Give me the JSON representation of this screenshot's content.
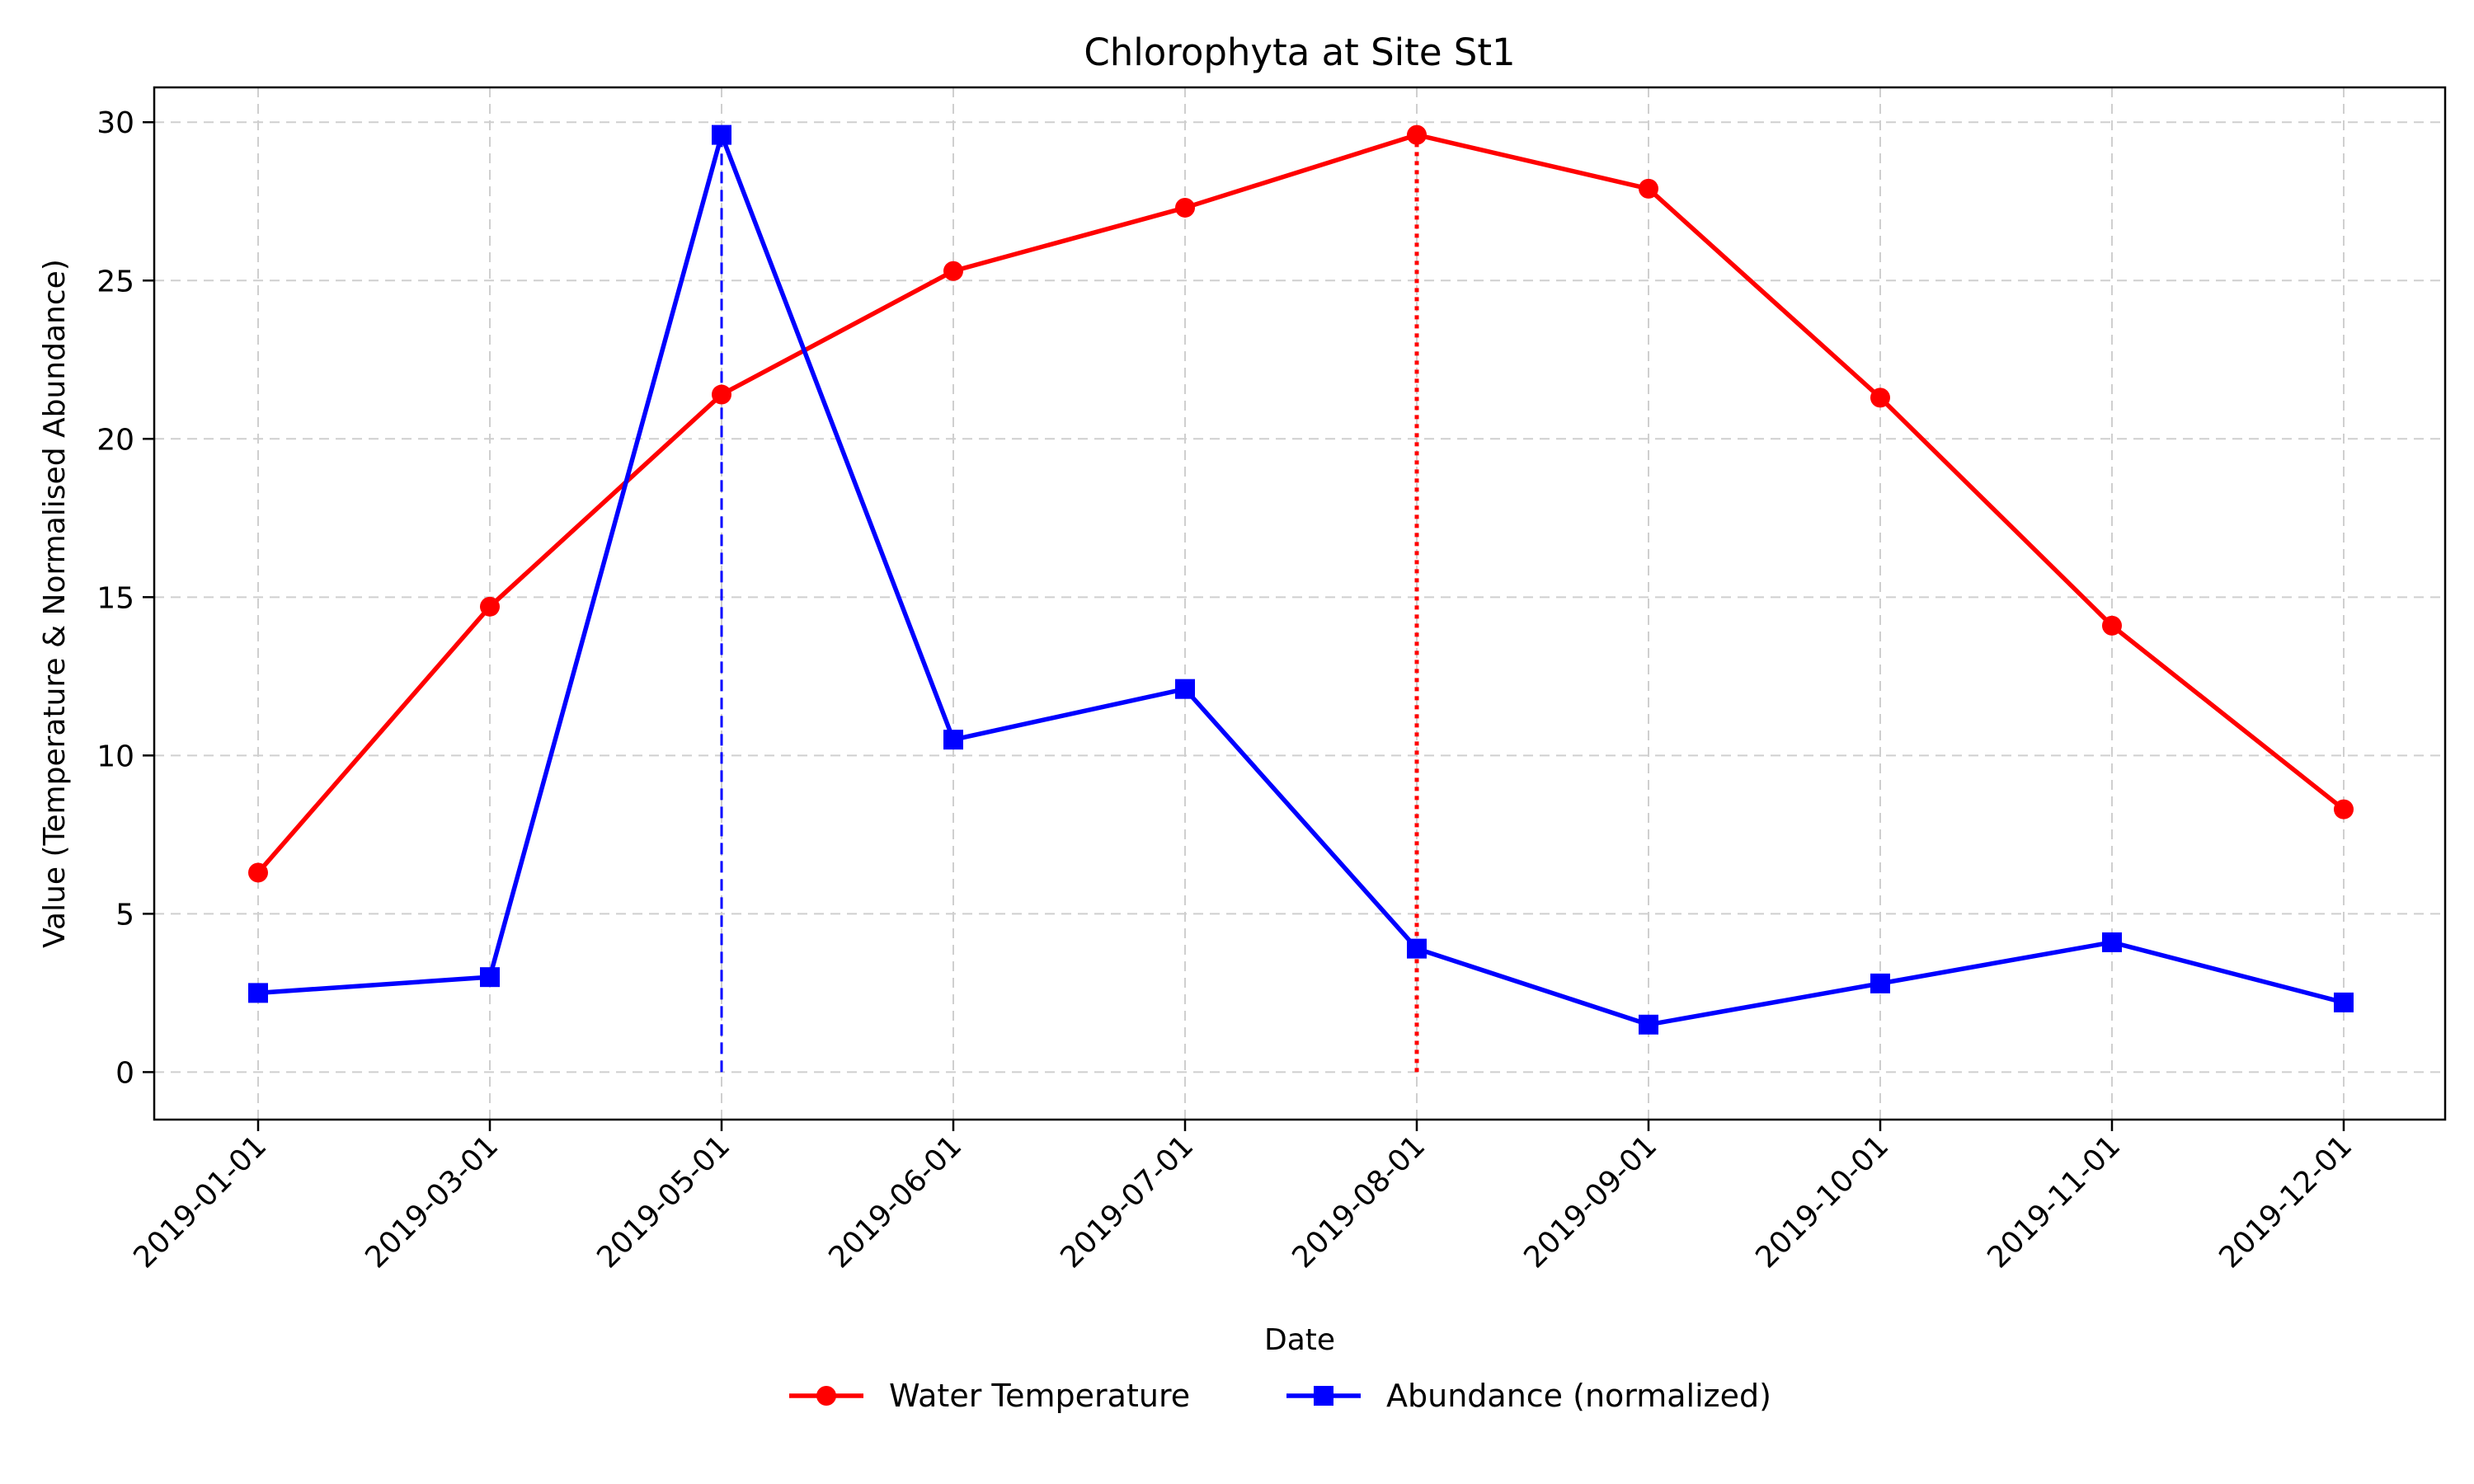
{
  "chart_data": {
    "type": "line",
    "title": "Chlorophyta at Site St1",
    "xlabel": "Date",
    "ylabel": "Value (Temperature & Normalised Abundance)",
    "x": [
      "2019-01-01",
      "2019-03-01",
      "2019-05-01",
      "2019-06-01",
      "2019-07-01",
      "2019-08-01",
      "2019-09-01",
      "2019-10-01",
      "2019-11-01",
      "2019-12-01"
    ],
    "ylim": [
      -1.5,
      31.1
    ],
    "yticks": [
      0,
      5,
      10,
      15,
      20,
      25,
      30
    ],
    "grid": true,
    "legend_position": "bottom-center",
    "series": [
      {
        "name": "Water Temperature",
        "color": "#ff0000",
        "marker": "circle",
        "values": [
          6.3,
          14.7,
          21.4,
          25.3,
          27.3,
          29.6,
          27.9,
          21.3,
          14.1,
          8.3
        ]
      },
      {
        "name": "Abundance (normalized)",
        "color": "#0000ff",
        "marker": "square",
        "values": [
          2.5,
          3.0,
          29.6,
          10.5,
          12.1,
          3.9,
          1.5,
          2.8,
          4.1,
          2.2
        ]
      }
    ],
    "annotations": [
      {
        "x": "2019-05-01",
        "y": 29.6,
        "color": "#0000ff",
        "style": "dashed"
      },
      {
        "x": "2019-08-01",
        "y": 29.6,
        "color": "#ff0000",
        "style": "dotted"
      }
    ]
  }
}
